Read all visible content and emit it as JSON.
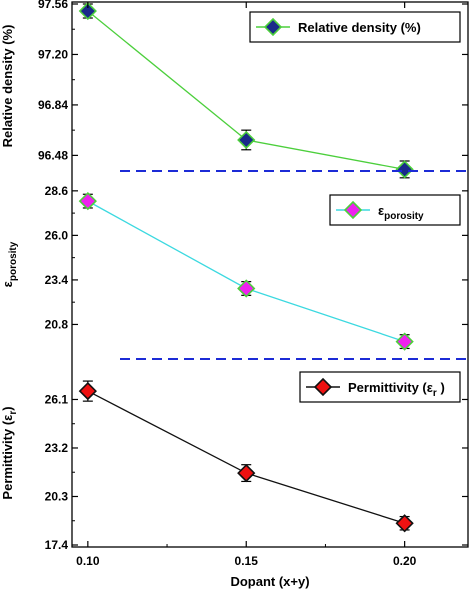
{
  "chart_data": {
    "type": "line",
    "x_axis": {
      "label": "Dopant (x+y)",
      "ticks": [
        0.1,
        0.15,
        0.2
      ],
      "tick_labels": [
        "0.10",
        "0.15",
        "0.20"
      ],
      "range": [
        0.095,
        0.22
      ]
    },
    "panels": [
      {
        "ylabel": "Relative density (%)",
        "yticks": [
          "97.56",
          "97.20",
          "96.84",
          "96.48"
        ],
        "ytick_values": [
          97.56,
          97.2,
          96.84,
          96.48
        ],
        "ylim": [
          96.39,
          97.56
        ],
        "series": [
          {
            "name": "Relative density (%)",
            "x": [
              0.1,
              0.15,
              0.2
            ],
            "y": [
              97.51,
              96.59,
              96.38
            ],
            "error": [
              0.05,
              0.07,
              0.06
            ],
            "line_color": "#4ccf3c",
            "marker_fill": "#1a2a8a",
            "marker_edge": "#4ccf3c"
          }
        ],
        "legend": {
          "label": "Relative density (%)",
          "position": "top-right"
        }
      },
      {
        "ylabel_main": "ε",
        "ylabel_sub": "porosity",
        "yticks": [
          "28.6",
          "26.0",
          "23.4",
          "20.8"
        ],
        "ytick_values": [
          28.6,
          26.0,
          23.4,
          20.8
        ],
        "ylim": [
          18.9,
          29.7
        ],
        "series": [
          {
            "name": "ε porosity",
            "x": [
              0.1,
              0.15,
              0.2
            ],
            "y": [
              28.0,
              22.9,
              19.8
            ],
            "error": [
              0.4,
              0.4,
              0.4
            ],
            "line_color": "#3cd9e0",
            "marker_fill": "#ee22ee",
            "marker_edge": "#4ccf3c"
          }
        ],
        "legend": {
          "label_main": "ε",
          "label_sub": "porosity",
          "position": "top-right"
        }
      },
      {
        "ylabel_main": "Permittivity (ε",
        "ylabel_sub": "r",
        "ylabel_end": ")",
        "yticks": [
          "26.1",
          "23.2",
          "20.3",
          "17.4"
        ],
        "ytick_values": [
          26.1,
          23.2,
          20.3,
          17.4
        ],
        "ylim": [
          17.4,
          28.4
        ],
        "series": [
          {
            "name": "Permittivity (εr)",
            "x": [
              0.1,
              0.15,
              0.2
            ],
            "y": [
              26.6,
              21.7,
              18.7
            ],
            "error": [
              0.6,
              0.5,
              0.4
            ],
            "line_color": "#111111",
            "marker_fill": "#ee1111",
            "marker_edge": "#111111"
          }
        ],
        "legend": {
          "label_main": "Permittivity (ε",
          "label_sub": "r",
          "label_end": " )",
          "position": "top-right"
        }
      }
    ],
    "separators": {
      "style": "dashed",
      "color": "#1c2bd6"
    }
  }
}
